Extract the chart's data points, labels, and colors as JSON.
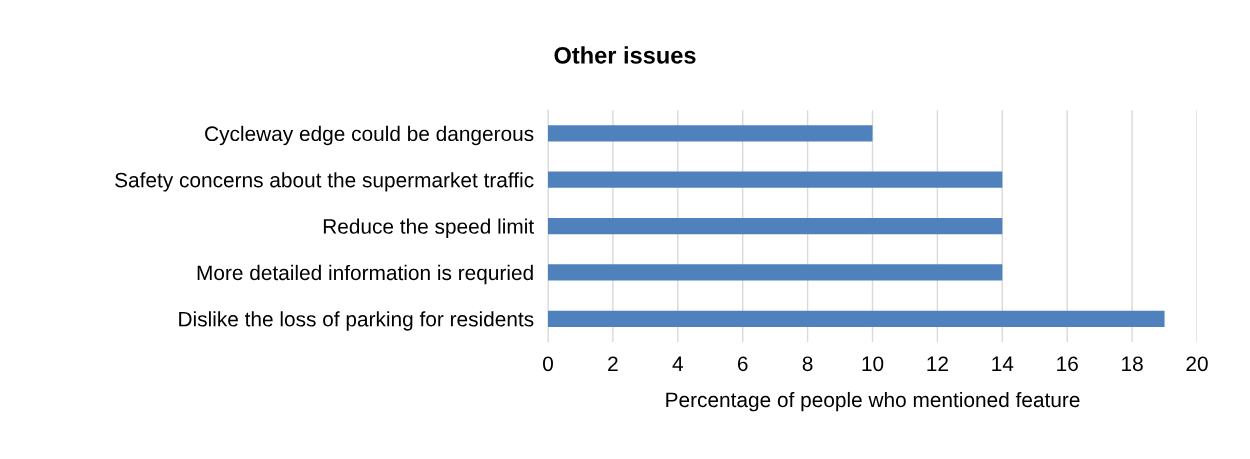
{
  "chart_data": {
    "type": "bar",
    "orientation": "horizontal",
    "title": "Other issues",
    "xlabel": "Percentage of people who mentioned feature",
    "categories": [
      "Cycleway edge could be dangerous",
      "Safety concerns about the supermarket traffic",
      "Reduce the speed limit",
      "More detailed information is requried",
      "Dislike the loss of parking for residents"
    ],
    "values": [
      10,
      14,
      14,
      14,
      19
    ],
    "color": "#4f81bd",
    "xlim": [
      0,
      20
    ],
    "xticks": [
      0,
      2,
      4,
      6,
      8,
      10,
      12,
      14,
      16,
      18,
      20
    ],
    "grid": "x",
    "legend": false
  }
}
